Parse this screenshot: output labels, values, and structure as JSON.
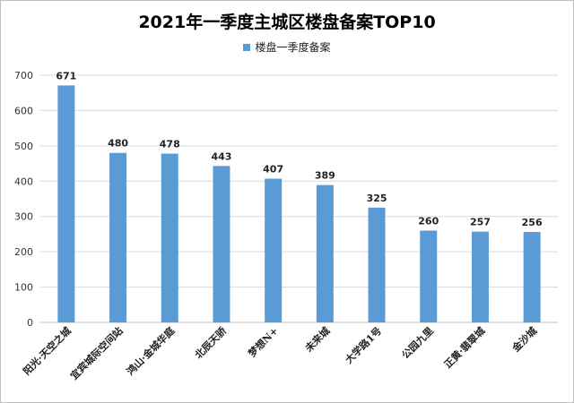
{
  "chart_data": {
    "type": "bar",
    "title": "2021年一季度主城区楼盘备案TOP10",
    "categories": [
      "阳光·天空之城",
      "宜宾城际空间站",
      "鸿山·金城华庭",
      "北辰天骄",
      "梦想N+",
      "未来城",
      "大学路1号",
      "公园九里",
      "正黄·翡翠城",
      "金沙城"
    ],
    "series": [
      {
        "name": "楼盘一季度备案",
        "values": [
          671,
          480,
          478,
          443,
          407,
          389,
          325,
          260,
          257,
          256
        ]
      }
    ],
    "ylim": [
      0,
      700
    ],
    "yticks": [
      0,
      100,
      200,
      300,
      400,
      500,
      600,
      700
    ],
    "grid": true,
    "legend_position": "top",
    "colors": {
      "bar": "#5b9bd5"
    }
  }
}
